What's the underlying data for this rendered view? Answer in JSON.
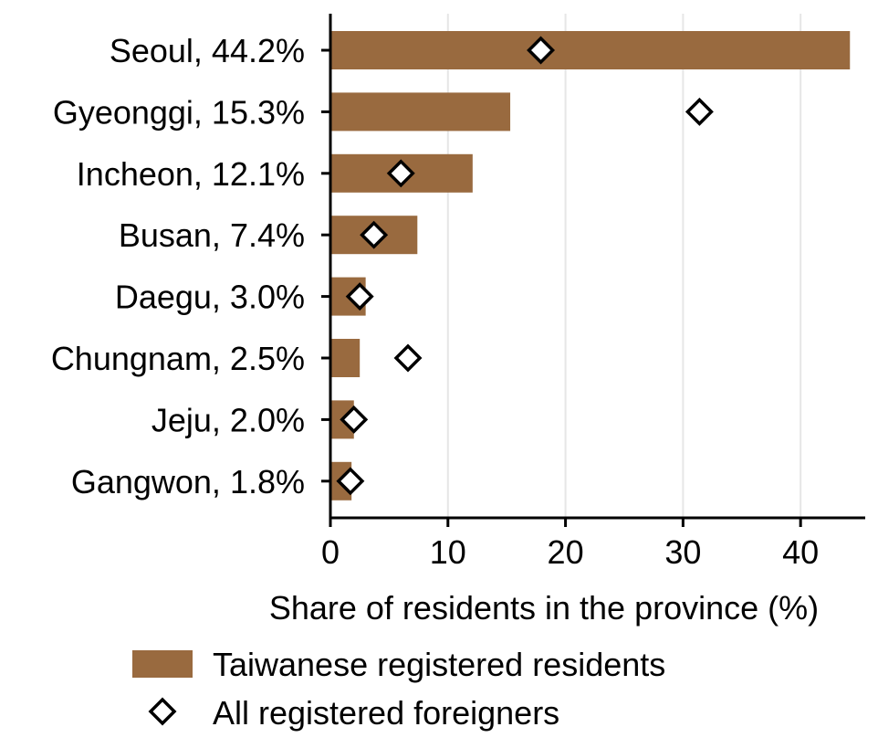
{
  "chart_data": {
    "type": "bar",
    "orientation": "horizontal",
    "categories": [
      "Seoul, 44.2%",
      "Gyeonggi, 15.3%",
      "Incheon, 12.1%",
      "Busan, 7.4%",
      "Daegu, 3.0%",
      "Chungnam, 2.5%",
      "Jeju, 2.0%",
      "Gangwon, 1.8%"
    ],
    "series": [
      {
        "name": "Taiwanese registered residents",
        "kind": "bar",
        "color": "#996a3f",
        "values": [
          44.2,
          15.3,
          12.1,
          7.4,
          3.0,
          2.5,
          2.0,
          1.8
        ]
      },
      {
        "name": "All registered foreigners",
        "kind": "marker",
        "marker": "diamond",
        "color": "#ffffff",
        "edge_color": "#000000",
        "values": [
          17.9,
          31.4,
          6.0,
          3.7,
          2.5,
          6.6,
          2.0,
          1.7
        ]
      }
    ],
    "xlabel": "Share of residents in the province (%)",
    "ylabel": "",
    "xlim": [
      0,
      45.5
    ],
    "xticks": [
      0,
      10,
      20,
      30,
      40
    ],
    "grid": "vertical",
    "legend_position": "bottom"
  }
}
